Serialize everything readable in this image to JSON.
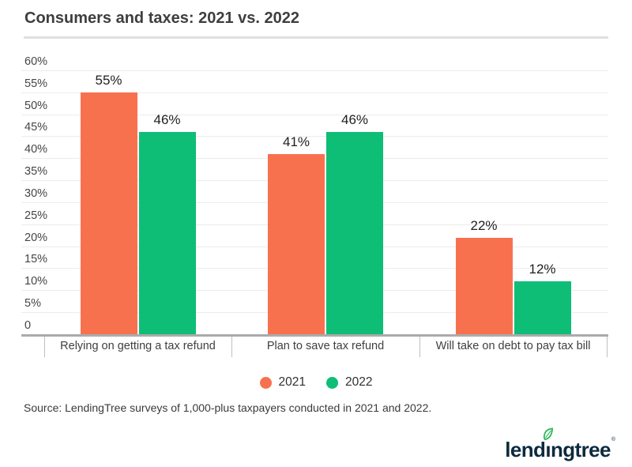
{
  "title": "Consumers and taxes: 2021 vs. 2022",
  "source": "Source: LendingTree surveys of 1,000-plus taxpayers conducted in 2021 and 2022.",
  "logo": {
    "brand": "lendingtree",
    "registered": "®"
  },
  "colors": {
    "series_2021": "#f8714f",
    "series_2022": "#0ebe76",
    "gridline": "#ececec",
    "axis": "#ababab",
    "title_text": "#3e3e3e",
    "logo_navy": "#0d2b3e",
    "leaf_green": "#2db757"
  },
  "legend": [
    {
      "label": "2021",
      "color": "#f8714f"
    },
    {
      "label": "2022",
      "color": "#0ebe76"
    }
  ],
  "chart_data": {
    "type": "bar",
    "title": "Consumers and taxes: 2021 vs. 2022",
    "categories": [
      "Relying on getting a tax refund",
      "Plan to save tax refund",
      "Will take on debt to pay tax bill"
    ],
    "series": [
      {
        "name": "2021",
        "color": "#f8714f",
        "values": [
          55,
          41,
          22
        ]
      },
      {
        "name": "2022",
        "color": "#0ebe76",
        "values": [
          46,
          46,
          12
        ]
      }
    ],
    "value_label_format": "percent",
    "xlabel": "",
    "ylabel": "",
    "ylim": [
      0,
      60
    ],
    "y_tick_step": 5,
    "y_ticks": [
      {
        "value": 60,
        "label": "60%"
      },
      {
        "value": 55,
        "label": "55%"
      },
      {
        "value": 50,
        "label": "50%"
      },
      {
        "value": 45,
        "label": "45%"
      },
      {
        "value": 40,
        "label": "40%"
      },
      {
        "value": 35,
        "label": "35%"
      },
      {
        "value": 30,
        "label": "30%"
      },
      {
        "value": 25,
        "label": "25%"
      },
      {
        "value": 20,
        "label": "20%"
      },
      {
        "value": 15,
        "label": "15%"
      },
      {
        "value": 10,
        "label": "10%"
      },
      {
        "value": 5,
        "label": "5%"
      },
      {
        "value": 0,
        "label": "0"
      }
    ],
    "grid": true,
    "legend_position": "bottom"
  }
}
